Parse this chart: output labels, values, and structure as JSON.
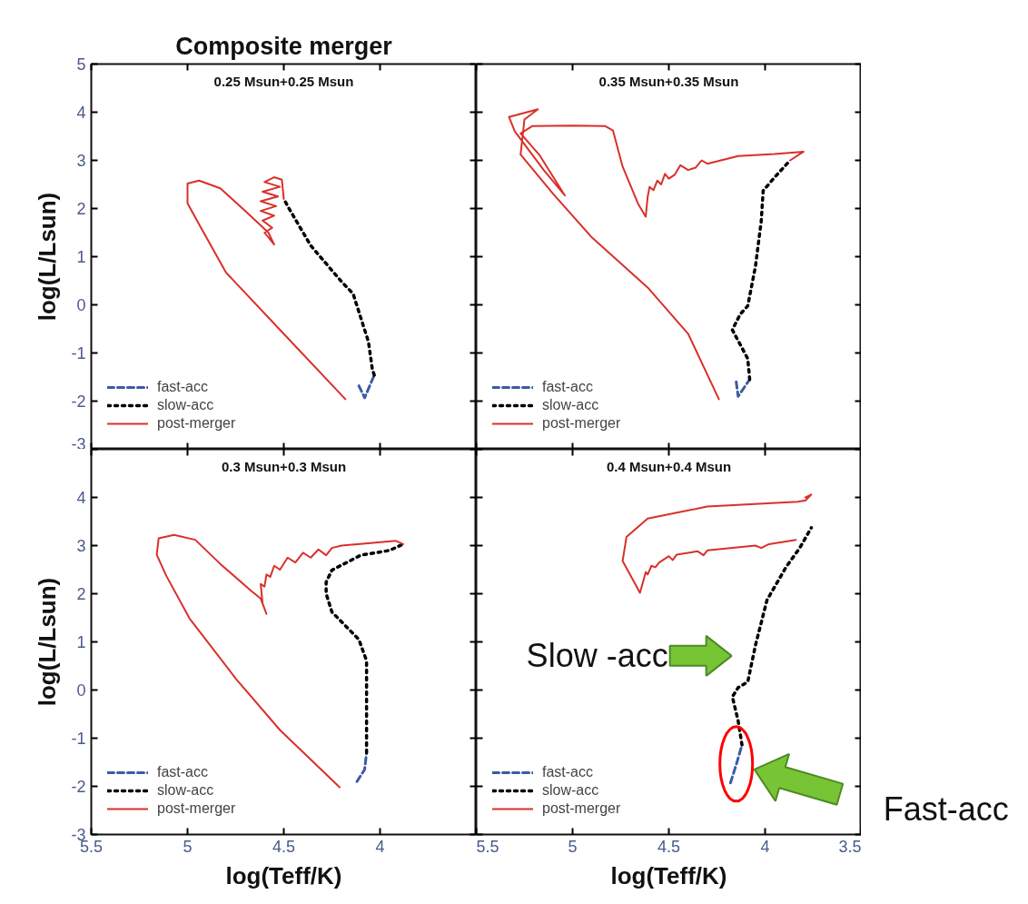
{
  "chart_data": [
    {
      "type": "line",
      "title": "Composite merger",
      "subtitle": "0.25 Msun+0.25 Msun",
      "ylabel": "log(L/Lsun)",
      "xlim": [
        5.5,
        3.5
      ],
      "ylim": [
        -3,
        5
      ],
      "xticks": [
        5.5,
        5,
        4.5,
        4,
        3.5
      ],
      "yticks": [
        5,
        4,
        3,
        2,
        1,
        0,
        -1,
        -2,
        -3
      ],
      "tick_labels": "y",
      "legend": "bottom left",
      "series": [
        {
          "name": "fast-acc",
          "color": "#3b5ba5",
          "line_style": "dashed",
          "x": [
            4.11,
            4.08,
            4.03
          ],
          "values": [
            -1.68,
            -1.93,
            -1.46
          ]
        },
        {
          "name": "slow-acc",
          "color": "#000000",
          "line_style": "dotted",
          "x": [
            4.03,
            4.04,
            4.06,
            4.14,
            4.2,
            4.36,
            4.48,
            4.5
          ],
          "values": [
            -1.46,
            -1.34,
            -0.77,
            0.23,
            0.48,
            1.23,
            2.05,
            2.2
          ]
        },
        {
          "name": "post-merger",
          "color": "#d9302a",
          "line_style": "solid",
          "x": [
            4.5,
            4.51,
            4.55,
            4.6,
            4.52,
            4.61,
            4.53,
            4.62,
            4.54,
            4.62,
            4.55,
            4.61,
            4.56,
            4.6,
            4.55,
            4.58,
            4.7,
            4.83,
            4.94,
            5.0,
            5.0,
            4.93,
            4.8,
            4.52,
            4.18
          ],
          "values": [
            2.2,
            2.6,
            2.65,
            2.55,
            2.45,
            2.35,
            2.25,
            2.15,
            2.05,
            1.95,
            1.85,
            1.75,
            1.6,
            1.5,
            1.25,
            1.5,
            1.95,
            2.42,
            2.58,
            2.52,
            2.11,
            1.6,
            0.67,
            -0.52,
            -1.96
          ]
        }
      ]
    },
    {
      "type": "line",
      "subtitle": "0.35 Msun+0.35 Msun",
      "xlim": [
        5.5,
        3.5
      ],
      "ylim": [
        -3,
        5
      ],
      "xticks": [
        5.5,
        5,
        4.5,
        4,
        3.5
      ],
      "yticks": [
        5,
        4,
        3,
        2,
        1,
        0,
        -1,
        -2,
        -3
      ],
      "tick_labels": false,
      "legend": "bottom left",
      "series": [
        {
          "name": "fast-acc",
          "color": "#3b5ba5",
          "line_style": "dashed",
          "x": [
            4.15,
            4.14,
            4.08
          ],
          "values": [
            -1.6,
            -1.9,
            -1.55
          ]
        },
        {
          "name": "slow-acc",
          "color": "#000000",
          "line_style": "dotted",
          "x": [
            4.08,
            4.09,
            4.17,
            4.13,
            4.09,
            4.05,
            4.02,
            4.01,
            3.95,
            3.87
          ],
          "values": [
            -1.55,
            -1.12,
            -0.52,
            -0.2,
            -0.02,
            0.8,
            1.74,
            2.37,
            2.65,
            3.0
          ]
        },
        {
          "name": "post-merger",
          "color": "#d9302a",
          "line_style": "solid",
          "x": [
            3.87,
            3.8,
            3.95,
            4.14,
            4.3,
            4.33,
            4.36,
            4.4,
            4.44,
            4.47,
            4.5,
            4.52,
            4.54,
            4.56,
            4.58,
            4.6,
            4.61,
            4.62,
            4.66,
            4.74,
            4.79,
            4.83,
            5.0,
            5.21,
            5.27,
            5.17,
            5.04,
            5.15,
            5.3,
            5.33,
            5.18,
            5.25,
            5.27,
            5.1,
            4.9,
            4.61,
            4.4,
            4.24
          ],
          "values": [
            3.0,
            3.18,
            3.13,
            3.09,
            2.93,
            3.0,
            2.85,
            2.8,
            2.9,
            2.7,
            2.62,
            2.72,
            2.5,
            2.58,
            2.38,
            2.45,
            2.24,
            1.83,
            2.1,
            2.87,
            3.62,
            3.71,
            3.72,
            3.71,
            3.56,
            3.1,
            2.27,
            2.8,
            3.6,
            3.9,
            4.06,
            3.85,
            3.12,
            2.3,
            1.4,
            0.36,
            -0.6,
            -1.96
          ]
        }
      ]
    },
    {
      "type": "line",
      "subtitle": "0.3 Msun+0.3 Msun",
      "xlabel": "log(Teff/K)",
      "ylabel": "log(L/Lsun)",
      "xlim": [
        5.5,
        3.5
      ],
      "ylim": [
        -3,
        5
      ],
      "xticks": [
        5.5,
        5,
        4.5,
        4,
        {
          "value": 3.5,
          "label": null
        }
      ],
      "yticks": [
        {
          "value": 5,
          "label": null
        },
        4,
        3,
        2,
        1,
        0,
        -1,
        -2,
        -3
      ],
      "legend": "bottom left",
      "series": [
        {
          "name": "fast-acc",
          "color": "#3b5ba5",
          "line_style": "dashed",
          "x": [
            4.12,
            4.08,
            4.07
          ],
          "values": [
            -1.9,
            -1.65,
            -1.3
          ]
        },
        {
          "name": "slow-acc",
          "color": "#000000",
          "line_style": "dotted",
          "x": [
            4.07,
            4.07,
            4.07,
            4.11,
            4.25,
            4.28,
            4.28,
            4.25,
            4.1,
            3.95,
            3.88
          ],
          "values": [
            -1.3,
            -0.5,
            0.61,
            1.05,
            1.62,
            2.0,
            2.24,
            2.49,
            2.8,
            2.9,
            3.03
          ]
        },
        {
          "name": "post-merger",
          "color": "#d9302a",
          "line_style": "solid",
          "x": [
            3.88,
            3.92,
            4.05,
            4.2,
            4.25,
            4.28,
            4.32,
            4.36,
            4.4,
            4.44,
            4.48,
            4.52,
            4.55,
            4.57,
            4.59,
            4.6,
            4.62,
            4.61,
            4.59,
            4.62,
            4.67,
            4.83,
            4.96,
            5.07,
            5.15,
            5.16,
            5.11,
            4.99,
            4.75,
            4.52,
            4.21
          ],
          "values": [
            3.03,
            3.1,
            3.05,
            3.0,
            2.95,
            2.8,
            2.92,
            2.75,
            2.85,
            2.65,
            2.75,
            2.5,
            2.58,
            2.35,
            2.4,
            2.15,
            2.2,
            1.8,
            1.58,
            1.9,
            2.06,
            2.62,
            3.12,
            3.22,
            3.15,
            2.81,
            2.37,
            1.49,
            0.24,
            -0.83,
            -2.02
          ]
        }
      ]
    },
    {
      "type": "line",
      "subtitle": "0.4 Msun+0.4 Msun",
      "xlabel": "log(Teff/K)",
      "xlim": [
        5.5,
        3.5
      ],
      "ylim": [
        -3,
        5
      ],
      "xticks": [
        5.5,
        5,
        4.5,
        4,
        3.5
      ],
      "yticks": [
        5,
        4,
        3,
        2,
        1,
        0,
        -1,
        -2,
        -3
      ],
      "tick_labels": "x",
      "legend": "bottom left",
      "annotations": [
        {
          "text": "Slow -acc",
          "x": 4.07,
          "y": 0.71
        },
        "Fast-acc"
      ],
      "series": [
        {
          "name": "fast-acc",
          "color": "#3b5ba5",
          "line_style": "dashed",
          "x": [
            4.18,
            4.15,
            4.12
          ],
          "values": [
            -1.93,
            -1.55,
            -1.14
          ]
        },
        {
          "name": "slow-acc",
          "color": "#000000",
          "line_style": "dotted",
          "x": [
            4.12,
            4.14,
            4.17,
            4.14,
            4.09,
            4.05,
            3.99,
            3.89,
            3.82,
            3.76
          ],
          "values": [
            -1.14,
            -0.64,
            -0.14,
            0.05,
            0.17,
            0.93,
            1.87,
            2.56,
            2.95,
            3.37
          ]
        },
        {
          "name": "post-merger",
          "color": "#d9302a",
          "line_style": "solid",
          "x": [
            3.84,
            3.98,
            4.02,
            4.05,
            4.3,
            4.32,
            4.35,
            4.46,
            4.48,
            4.5,
            4.55,
            4.57,
            4.59,
            4.61,
            4.62,
            4.63,
            4.65,
            4.68,
            4.74,
            4.72,
            4.61,
            4.3,
            3.83,
            3.79,
            3.76,
            3.79
          ],
          "values": [
            3.12,
            3.03,
            2.95,
            3.0,
            2.9,
            2.8,
            2.88,
            2.81,
            2.7,
            2.78,
            2.65,
            2.55,
            2.58,
            2.4,
            2.45,
            2.3,
            2.02,
            2.24,
            2.68,
            3.18,
            3.56,
            3.81,
            3.91,
            3.94,
            4.06,
            4.0
          ]
        }
      ]
    }
  ]
}
